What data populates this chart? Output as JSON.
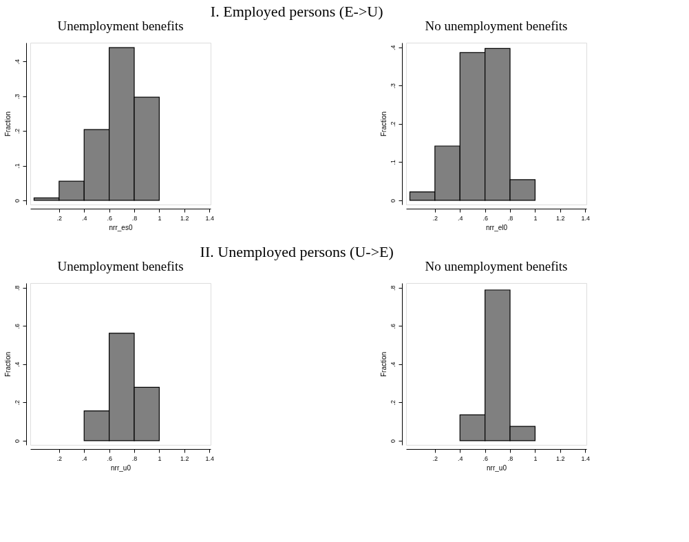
{
  "chart_data": [
    {
      "type": "histogram",
      "title": "Unemployment benefits",
      "annotations": [
        "I. Employed persons (E->U)"
      ],
      "xlabel": "nrr_es0",
      "ylabel": "Fraction",
      "color": "#808080",
      "bins": [
        0,
        0.2,
        0.4,
        0.6,
        0.8,
        1.0
      ],
      "values": [
        0.007,
        0.055,
        0.204,
        0.44,
        0.297
      ],
      "xlim": [
        -0.03,
        1.41
      ],
      "ylim": [
        -0.012,
        0.454
      ],
      "xticks": [
        {
          "value": 0.2,
          "label": ".2"
        },
        {
          "value": 0.4,
          "label": ".4"
        },
        {
          "value": 0.6,
          "label": ".6"
        },
        {
          "value": 0.8,
          "label": ".8"
        },
        1,
        {
          "value": 1.2,
          "label": "1.2"
        },
        {
          "value": 1.4,
          "label": "1.4"
        }
      ],
      "yticks": [
        0,
        {
          "value": 0.1,
          "label": ".1"
        },
        {
          "value": 0.2,
          "label": ".2"
        },
        {
          "value": 0.3,
          "label": ".3"
        },
        {
          "value": 0.4,
          "label": ".4"
        }
      ],
      "grid": false
    },
    {
      "type": "histogram",
      "title": "No unemployment benefits",
      "xlabel": "nrr_el0",
      "ylabel": "Fraction",
      "color": "#808080",
      "bins": [
        0,
        0.2,
        0.4,
        0.6,
        0.8,
        1.0
      ],
      "values": [
        0.022,
        0.142,
        0.386,
        0.397,
        0.054
      ],
      "xlim": [
        -0.03,
        1.41
      ],
      "ylim": [
        -0.011,
        0.412
      ],
      "xticks": [
        {
          "value": 0.2,
          "label": ".2"
        },
        {
          "value": 0.4,
          "label": ".4"
        },
        {
          "value": 0.6,
          "label": ".6"
        },
        {
          "value": 0.8,
          "label": ".8"
        },
        1,
        {
          "value": 1.2,
          "label": "1.2"
        },
        {
          "value": 1.4,
          "label": "1.4"
        }
      ],
      "yticks": [
        0,
        {
          "value": 0.1,
          "label": ".1"
        },
        {
          "value": 0.2,
          "label": ".2"
        },
        {
          "value": 0.3,
          "label": ".3"
        },
        {
          "value": 0.4,
          "label": ".4"
        }
      ],
      "grid": false
    },
    {
      "type": "histogram",
      "title": "Unemployment benefits",
      "annotations": [
        "II. Unemployed persons (U->E)"
      ],
      "xlabel": "nrr_u0",
      "ylabel": "Fraction",
      "color": "#808080",
      "bins": [
        0.4,
        0.6,
        0.8,
        1.0
      ],
      "values": [
        0.156,
        0.562,
        0.279
      ],
      "xlim": [
        -0.03,
        1.41
      ],
      "ylim": [
        -0.022,
        0.824
      ],
      "xticks": [
        {
          "value": 0.2,
          "label": ".2"
        },
        {
          "value": 0.4,
          "label": ".4"
        },
        {
          "value": 0.6,
          "label": ".6"
        },
        {
          "value": 0.8,
          "label": ".8"
        },
        1,
        {
          "value": 1.2,
          "label": "1.2"
        },
        {
          "value": 1.4,
          "label": "1.4"
        }
      ],
      "yticks": [
        0,
        {
          "value": 0.2,
          "label": ".2"
        },
        {
          "value": 0.4,
          "label": ".4"
        },
        {
          "value": 0.6,
          "label": ".6"
        },
        {
          "value": 0.8,
          "label": ".8"
        }
      ],
      "grid": false
    },
    {
      "type": "histogram",
      "title": "No unemployment benefits",
      "xlabel": "nrr_u0",
      "ylabel": "Fraction",
      "color": "#808080",
      "bins": [
        0.4,
        0.6,
        0.8,
        1.0
      ],
      "values": [
        0.135,
        0.788,
        0.075
      ],
      "xlim": [
        -0.03,
        1.41
      ],
      "ylim": [
        -0.022,
        0.824
      ],
      "xticks": [
        {
          "value": 0.2,
          "label": ".2"
        },
        {
          "value": 0.4,
          "label": ".4"
        },
        {
          "value": 0.6,
          "label": ".6"
        },
        {
          "value": 0.8,
          "label": ".8"
        },
        1,
        {
          "value": 1.2,
          "label": "1.2"
        },
        {
          "value": 1.4,
          "label": "1.4"
        }
      ],
      "yticks": [
        0,
        {
          "value": 0.2,
          "label": ".2"
        },
        {
          "value": 0.4,
          "label": ".4"
        },
        {
          "value": 0.6,
          "label": ".6"
        },
        {
          "value": 0.8,
          "label": ".8"
        }
      ],
      "grid": false
    }
  ]
}
